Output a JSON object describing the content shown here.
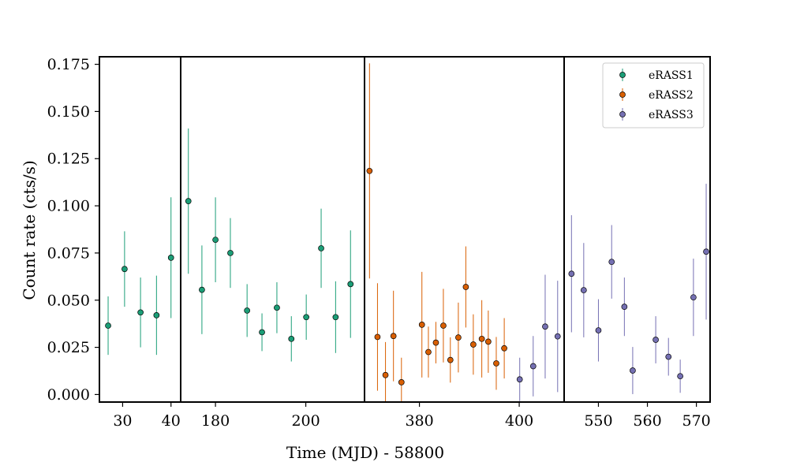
{
  "chart_data": {
    "type": "scatter",
    "xlabel": "Time (MJD) - 58800",
    "ylabel": "Count rate (cts/s)",
    "ylim": [
      -0.004,
      0.179
    ],
    "yticks": [
      "0.000",
      "0.025",
      "0.050",
      "0.075",
      "0.100",
      "0.125",
      "0.150",
      "0.175"
    ],
    "broken_x_axis": true,
    "panels": [
      {
        "xlim": [
          25.2,
          42.0
        ],
        "xticks": [
          30,
          40
        ],
        "xtick_labels": [
          "30",
          "40"
        ]
      },
      {
        "xlim": [
          172.3,
          213.0
        ],
        "xticks": [
          180,
          200
        ],
        "xtick_labels": [
          "180",
          "200"
        ]
      },
      {
        "xlim": [
          369.0,
          409.0
        ],
        "xticks": [
          380,
          400
        ],
        "xtick_labels": [
          "380",
          "400"
        ]
      },
      {
        "xlim": [
          543.0,
          572.8
        ],
        "xticks": [
          550,
          560,
          570
        ],
        "xtick_labels": [
          "550",
          "560",
          "570"
        ]
      }
    ],
    "legend": {
      "position": "top-right",
      "entries": [
        "eRASS1",
        "eRASS2",
        "eRASS3"
      ]
    },
    "series": [
      {
        "name": "eRASS1",
        "color": "#1b9e77",
        "points": [
          {
            "x": 27.0,
            "y": 0.0365,
            "err": 0.0155
          },
          {
            "x": 30.4,
            "y": 0.0665,
            "err": 0.02
          },
          {
            "x": 33.7,
            "y": 0.0435,
            "err": 0.0185
          },
          {
            "x": 37.0,
            "y": 0.042,
            "err": 0.021
          },
          {
            "x": 40.0,
            "y": 0.0725,
            "err": 0.032
          },
          {
            "x": 174.0,
            "y": 0.1025,
            "err": 0.0385
          },
          {
            "x": 177.0,
            "y": 0.0555,
            "err": 0.0235
          },
          {
            "x": 180.0,
            "y": 0.082,
            "err": 0.0225
          },
          {
            "x": 183.3,
            "y": 0.075,
            "err": 0.0185
          },
          {
            "x": 187.0,
            "y": 0.0445,
            "err": 0.014
          },
          {
            "x": 190.3,
            "y": 0.033,
            "err": 0.01
          },
          {
            "x": 193.6,
            "y": 0.046,
            "err": 0.0135
          },
          {
            "x": 196.8,
            "y": 0.0295,
            "err": 0.012
          },
          {
            "x": 200.1,
            "y": 0.041,
            "err": 0.012
          },
          {
            "x": 203.4,
            "y": 0.0775,
            "err": 0.021
          },
          {
            "x": 206.6,
            "y": 0.041,
            "err": 0.019
          },
          {
            "x": 209.9,
            "y": 0.0585,
            "err": 0.0285
          }
        ]
      },
      {
        "name": "eRASS2",
        "color": "#d95f02",
        "points": [
          {
            "x": 370.0,
            "y": 0.1185,
            "err": 0.057
          },
          {
            "x": 371.6,
            "y": 0.0305,
            "err": 0.0285
          },
          {
            "x": 373.2,
            "y": 0.0103,
            "err": 0.0175
          },
          {
            "x": 374.8,
            "y": 0.031,
            "err": 0.024
          },
          {
            "x": 376.4,
            "y": 0.0065,
            "err": 0.013
          },
          {
            "x": 380.5,
            "y": 0.037,
            "err": 0.028
          },
          {
            "x": 381.8,
            "y": 0.0225,
            "err": 0.0135
          },
          {
            "x": 383.3,
            "y": 0.0275,
            "err": 0.011
          },
          {
            "x": 384.8,
            "y": 0.0365,
            "err": 0.0195
          },
          {
            "x": 386.2,
            "y": 0.0183,
            "err": 0.012
          },
          {
            "x": 387.8,
            "y": 0.0302,
            "err": 0.0185
          },
          {
            "x": 389.3,
            "y": 0.057,
            "err": 0.0215
          },
          {
            "x": 390.8,
            "y": 0.0265,
            "err": 0.016
          },
          {
            "x": 392.5,
            "y": 0.0295,
            "err": 0.0205
          },
          {
            "x": 393.8,
            "y": 0.028,
            "err": 0.0165
          },
          {
            "x": 395.4,
            "y": 0.0165,
            "err": 0.014
          },
          {
            "x": 397.0,
            "y": 0.0245,
            "err": 0.016
          }
        ]
      },
      {
        "name": "eRASS3",
        "color": "#7570b3",
        "points": [
          {
            "x": 400.1,
            "y": 0.008,
            "err": 0.0115
          },
          {
            "x": 402.8,
            "y": 0.015,
            "err": 0.016
          },
          {
            "x": 405.2,
            "y": 0.036,
            "err": 0.0275
          },
          {
            "x": 407.7,
            "y": 0.0308,
            "err": 0.0295
          },
          {
            "x": 544.5,
            "y": 0.064,
            "err": 0.031
          },
          {
            "x": 547.0,
            "y": 0.0553,
            "err": 0.025
          },
          {
            "x": 550.0,
            "y": 0.034,
            "err": 0.0165
          },
          {
            "x": 552.7,
            "y": 0.0703,
            "err": 0.0195
          },
          {
            "x": 555.3,
            "y": 0.0465,
            "err": 0.0155
          },
          {
            "x": 557.0,
            "y": 0.0127,
            "err": 0.0125
          },
          {
            "x": 561.7,
            "y": 0.029,
            "err": 0.0125
          },
          {
            "x": 564.3,
            "y": 0.02,
            "err": 0.01
          },
          {
            "x": 566.7,
            "y": 0.0097,
            "err": 0.0088
          },
          {
            "x": 569.4,
            "y": 0.0515,
            "err": 0.0205
          },
          {
            "x": 572.0,
            "y": 0.0757,
            "err": 0.036
          }
        ]
      }
    ]
  }
}
